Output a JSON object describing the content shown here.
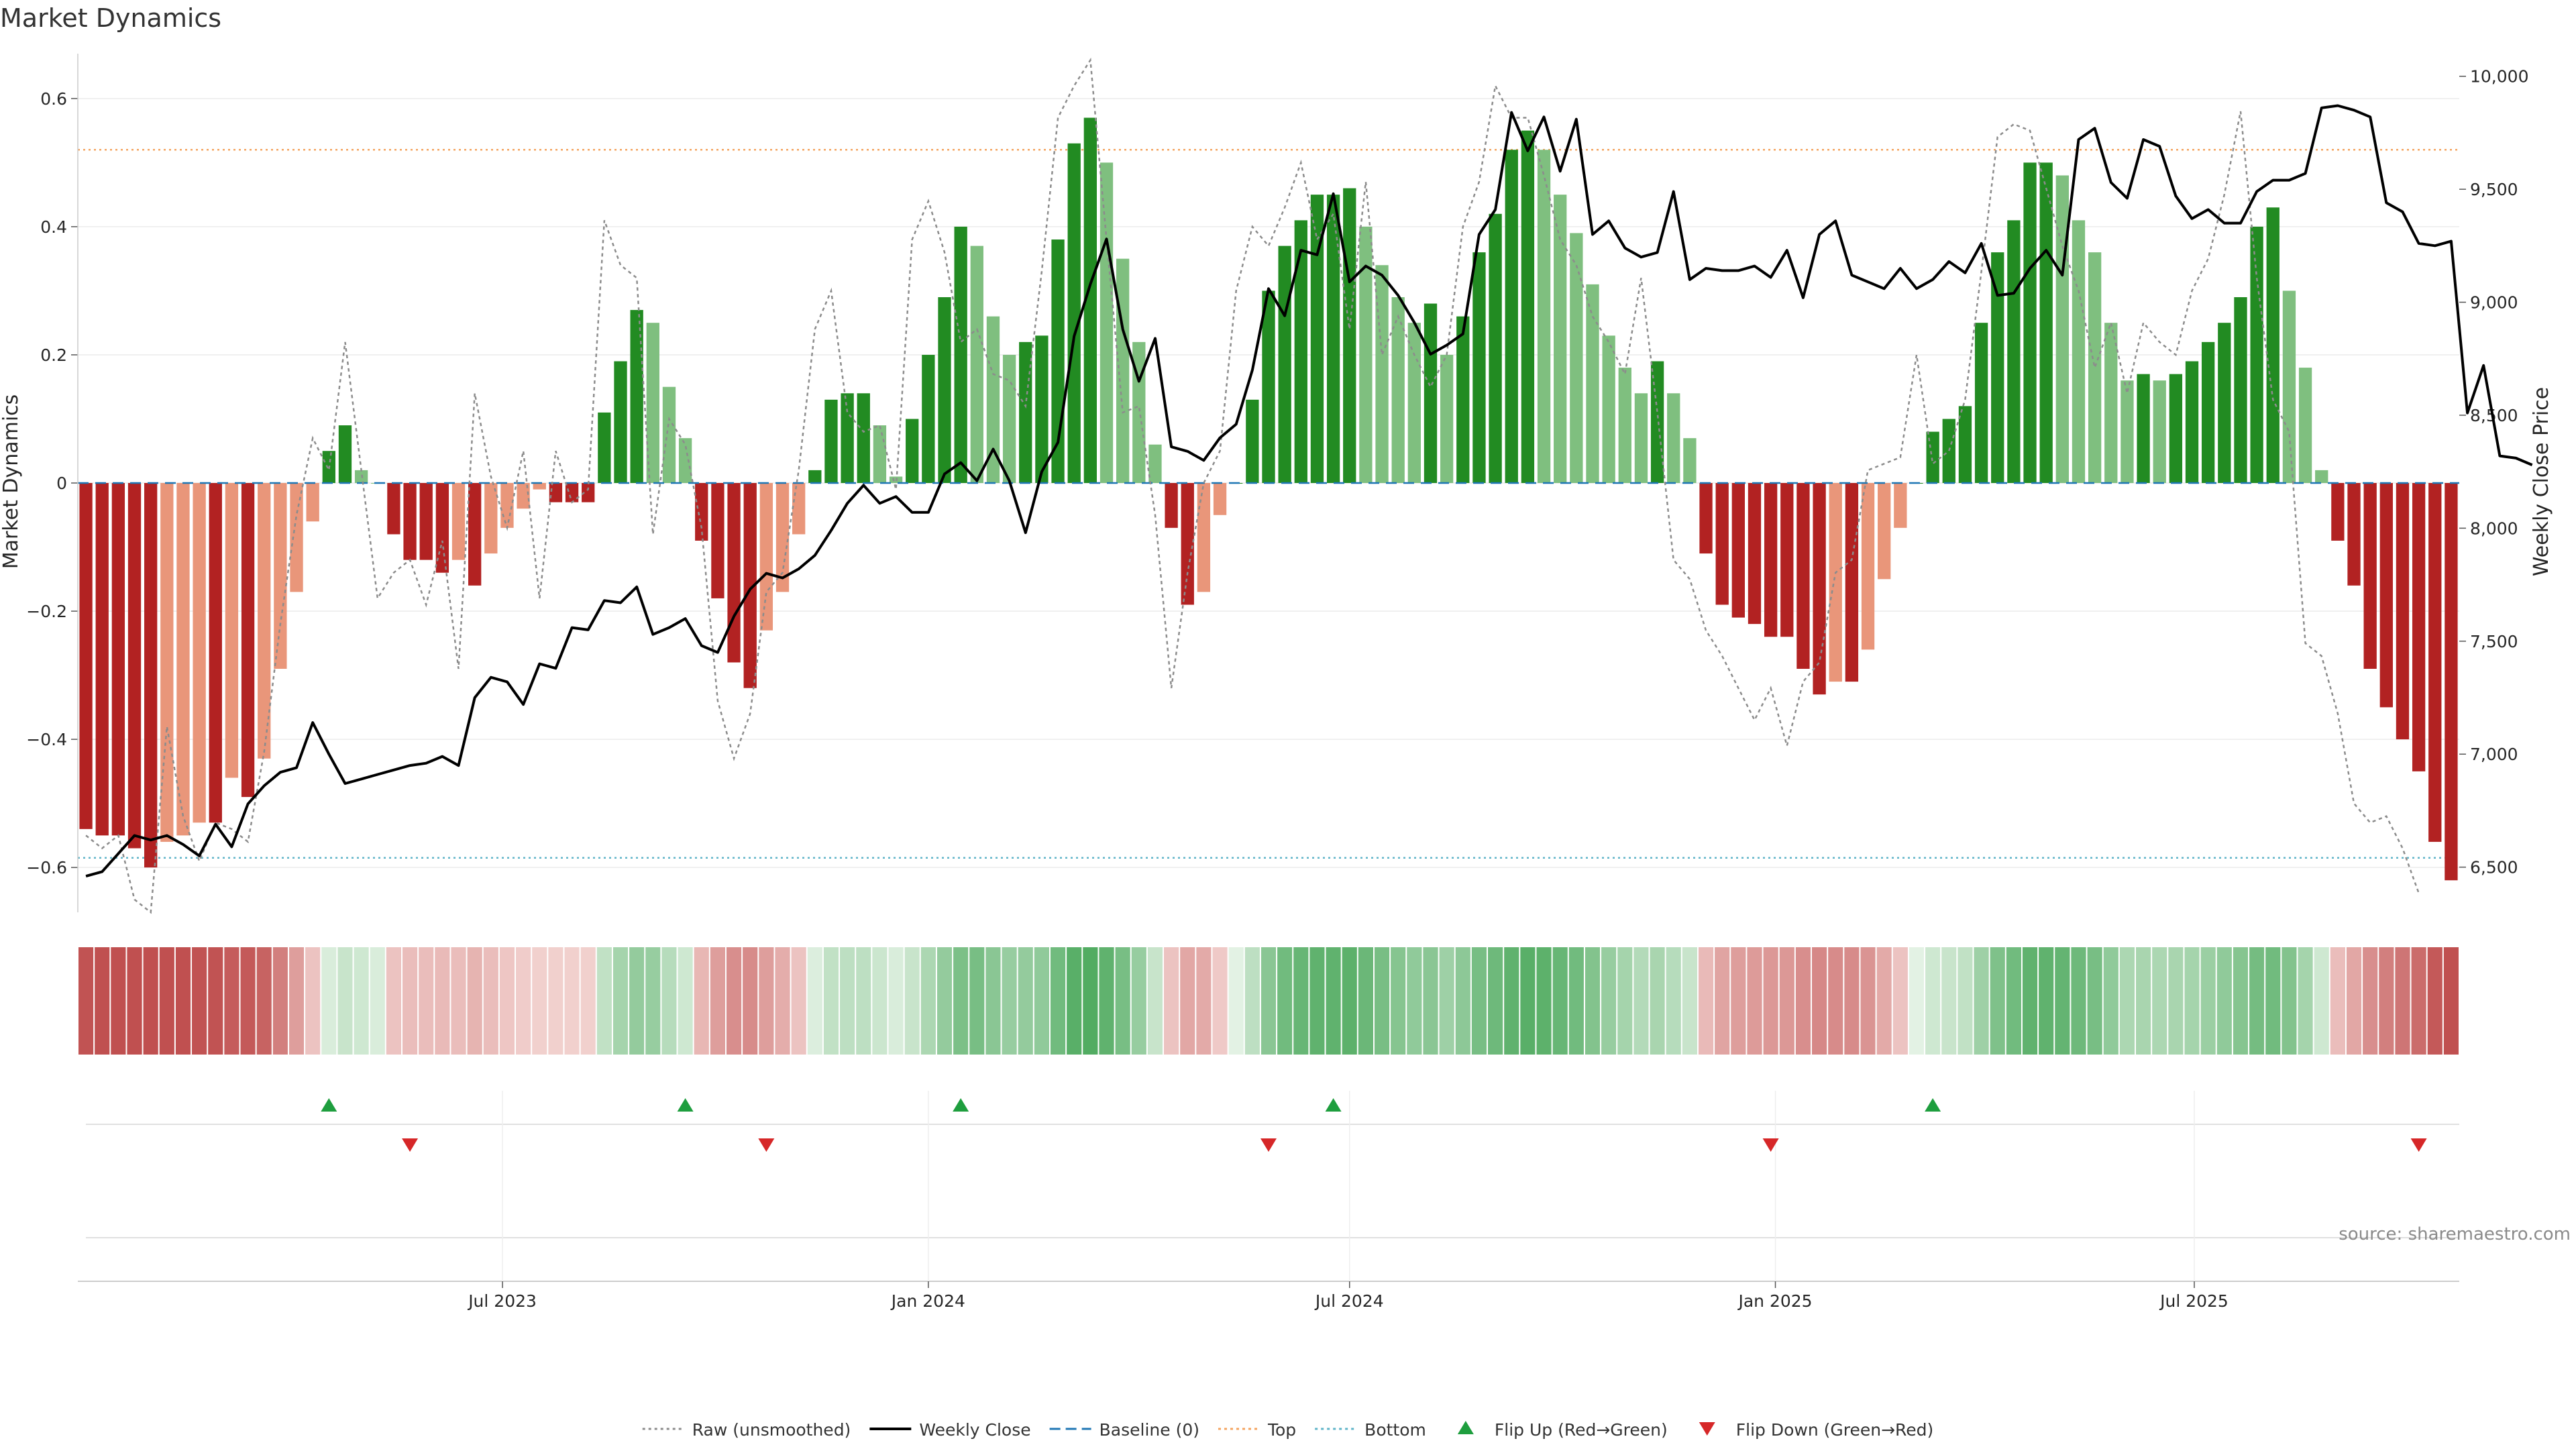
{
  "chart_data": {
    "type": "bar",
    "title": "Market Dynamics",
    "ylabel_left": "Market Dynamics",
    "ylabel_right": "Weekly Close Price",
    "source": "source: sharemaestro.com",
    "start_date": "2023-01-02",
    "ylim_left": [
      -0.67,
      0.67
    ],
    "ylim_right": [
      6300,
      10100
    ],
    "left_ticks": [
      {
        "v": 0.6,
        "label": "0.6"
      },
      {
        "v": 0.4,
        "label": "0.4"
      },
      {
        "v": 0.2,
        "label": "0.2"
      },
      {
        "v": 0,
        "label": "0"
      },
      {
        "v": -0.2,
        "label": "−0.2"
      },
      {
        "v": -0.4,
        "label": "−0.4"
      },
      {
        "v": -0.6,
        "label": "−0.6"
      }
    ],
    "right_ticks": [
      {
        "v": 10000,
        "label": "10,000"
      },
      {
        "v": 9500,
        "label": "9,500"
      },
      {
        "v": 9000,
        "label": "9,000"
      },
      {
        "v": 8500,
        "label": "8,500"
      },
      {
        "v": 8000,
        "label": "8,000"
      },
      {
        "v": 7500,
        "label": "7,500"
      },
      {
        "v": 7000,
        "label": "7,000"
      },
      {
        "v": 6500,
        "label": "6,500"
      }
    ],
    "x_ticks": [
      {
        "date": "2023-07-01",
        "label": "Jul 2023"
      },
      {
        "date": "2024-01-01",
        "label": "Jan 2024"
      },
      {
        "date": "2024-07-01",
        "label": "Jul 2024"
      },
      {
        "date": "2025-01-01",
        "label": "Jan 2025"
      },
      {
        "date": "2025-07-01",
        "label": "Jul 2025"
      }
    ],
    "top_line": 0.52,
    "bottom_line": -0.585,
    "baseline": 0,
    "colors": {
      "strong_up": "#228b22",
      "weak_up": "#7fbf7f",
      "strong_down": "#b22222",
      "weak_down": "#e9967a",
      "raw": "#8c8c8c",
      "close": "#000000",
      "baseline": "#1f77b4",
      "top": "#f4a460",
      "bottom": "#5fb4c8",
      "flip_up": "#1e9e3e",
      "flip_down": "#d62728"
    },
    "dynamics": [
      -0.54,
      -0.55,
      -0.55,
      -0.57,
      -0.6,
      -0.56,
      -0.55,
      -0.53,
      -0.53,
      -0.46,
      -0.49,
      -0.43,
      -0.29,
      -0.17,
      -0.06,
      0.05,
      0.09,
      0.02,
      0,
      -0.08,
      -0.12,
      -0.12,
      -0.14,
      -0.12,
      -0.16,
      -0.11,
      -0.07,
      -0.04,
      -0.01,
      -0.03,
      -0.03,
      -0.03,
      0.11,
      0.19,
      0.27,
      0.25,
      0.15,
      0.07,
      -0.09,
      -0.18,
      -0.28,
      -0.32,
      -0.23,
      -0.17,
      -0.08,
      0.02,
      0.13,
      0.14,
      0.14,
      0.09,
      0.01,
      0.1,
      0.2,
      0.29,
      0.4,
      0.37,
      0.26,
      0.2,
      0.22,
      0.23,
      0.38,
      0.53,
      0.57,
      0.5,
      0.35,
      0.22,
      0.06,
      -0.07,
      -0.19,
      -0.17,
      -0.05,
      0,
      0.13,
      0.3,
      0.37,
      0.41,
      0.45,
      0.45,
      0.46,
      0.4,
      0.34,
      0.29,
      0.25,
      0.28,
      0.2,
      0.26,
      0.36,
      0.42,
      0.52,
      0.55,
      0.52,
      0.45,
      0.39,
      0.31,
      0.23,
      0.18,
      0.14,
      0.19,
      0.14,
      0.07,
      -0.11,
      -0.19,
      -0.21,
      -0.22,
      -0.24,
      -0.24,
      -0.29,
      -0.33,
      -0.31,
      -0.31,
      -0.26,
      -0.15,
      -0.07,
      0,
      0.08,
      0.1,
      0.12,
      0.25,
      0.36,
      0.41,
      0.5,
      0.5,
      0.48,
      0.41,
      0.36,
      0.25,
      0.16,
      0.17,
      0.16,
      0.17,
      0.19,
      0.22,
      0.25,
      0.29,
      0.4,
      0.43,
      0.3,
      0.18,
      0.02,
      -0.09,
      -0.16,
      -0.29,
      -0.35,
      -0.4,
      -0.45,
      -0.56,
      -0.62
    ],
    "raw": [
      -0.55,
      -0.57,
      -0.55,
      -0.65,
      -0.68,
      -0.38,
      -0.52,
      -0.59,
      -0.53,
      -0.54,
      -0.56,
      -0.42,
      -0.22,
      -0.05,
      0.07,
      0.02,
      0.22,
      0.02,
      -0.18,
      -0.14,
      -0.12,
      -0.19,
      -0.09,
      -0.29,
      0.14,
      0.01,
      -0.07,
      0.05,
      -0.18,
      0.05,
      -0.03,
      -0.01,
      0.41,
      0.34,
      0.32,
      -0.08,
      0.1,
      0.06,
      -0.07,
      -0.34,
      -0.43,
      -0.36,
      -0.17,
      -0.14,
      0.02,
      0.24,
      0.3,
      0.11,
      0.08,
      0.09,
      -0.01,
      0.38,
      0.44,
      0.36,
      0.22,
      0.24,
      0.17,
      0.16,
      0.12,
      0.33,
      0.57,
      0.62,
      0.66,
      0.38,
      0.11,
      0.12,
      -0.05,
      -0.32,
      -0.14,
      0,
      0.05,
      0.3,
      0.4,
      0.37,
      0.43,
      0.5,
      0.38,
      0.42,
      0.24,
      0.47,
      0.2,
      0.26,
      0.2,
      0.15,
      0.2,
      0.4,
      0.47,
      0.62,
      0.57,
      0.57,
      0.48,
      0.38,
      0.34,
      0.26,
      0.22,
      0.17,
      0.32,
      0.11,
      -0.12,
      -0.15,
      -0.23,
      -0.27,
      -0.32,
      -0.37,
      -0.32,
      -0.41,
      -0.31,
      -0.28,
      -0.14,
      -0.12,
      0.02,
      0.03,
      0.04,
      0.2,
      0.03,
      0.05,
      0.13,
      0.33,
      0.54,
      0.56,
      0.55,
      0.46,
      0.37,
      0.3,
      0.18,
      0.25,
      0.14,
      0.25,
      0.22,
      0.2,
      0.3,
      0.35,
      0.45,
      0.58,
      0.32,
      0.13,
      0.08,
      -0.25,
      -0.27,
      -0.36,
      -0.5,
      -0.53,
      -0.52,
      -0.57,
      -0.64
    ],
    "close": [
      6460,
      6480,
      6560,
      6640,
      6620,
      6640,
      6600,
      6550,
      6690,
      6590,
      6780,
      6860,
      6920,
      6940,
      7140,
      7000,
      6870,
      6890,
      6910,
      6930,
      6950,
      6960,
      6990,
      6950,
      7250,
      7340,
      7320,
      7220,
      7400,
      7380,
      7560,
      7550,
      7680,
      7670,
      7740,
      7530,
      7560,
      7600,
      7480,
      7450,
      7610,
      7730,
      7800,
      7780,
      7820,
      7880,
      7990,
      8110,
      8190,
      8110,
      8140,
      8070,
      8070,
      8240,
      8290,
      8210,
      8350,
      8210,
      7980,
      8250,
      8380,
      8850,
      9080,
      9280,
      8880,
      8650,
      8840,
      8360,
      8340,
      8300,
      8400,
      8460,
      8700,
      9060,
      8940,
      9230,
      9210,
      9480,
      9090,
      9160,
      9120,
      9030,
      8910,
      8770,
      8810,
      8860,
      9300,
      9410,
      9840,
      9670,
      9820,
      9580,
      9810,
      9300,
      9360,
      9240,
      9200,
      9220,
      9490,
      9100,
      9150,
      9140,
      9140,
      9160,
      9110,
      9230,
      9020,
      9300,
      9360,
      9120,
      9090,
      9060,
      9150,
      9060,
      9100,
      9180,
      9130,
      9260,
      9030,
      9040,
      9150,
      9230,
      9120,
      9720,
      9770,
      9530,
      9460,
      9720,
      9690,
      9470,
      9370,
      9410,
      9350,
      9350,
      9490,
      9540,
      9540,
      9570,
      9860,
      9870,
      9850,
      9820,
      9440,
      9400,
      9260,
      9250,
      9270,
      8510,
      8720,
      8320,
      8310,
      8280
    ],
    "heatmap_values": [
      -0.44,
      -0.45,
      -0.45,
      -0.46,
      -0.47,
      -0.46,
      -0.45,
      -0.44,
      -0.44,
      -0.41,
      -0.42,
      -0.39,
      -0.3,
      -0.2,
      -0.08,
      0.05,
      0.1,
      0.08,
      0.05,
      -0.08,
      -0.1,
      -0.1,
      -0.11,
      -0.1,
      -0.13,
      -0.1,
      -0.07,
      -0.05,
      -0.04,
      -0.04,
      -0.04,
      -0.04,
      0.12,
      0.2,
      0.25,
      0.24,
      0.15,
      0.08,
      -0.12,
      -0.2,
      -0.25,
      -0.26,
      -0.2,
      -0.15,
      -0.08,
      0.04,
      0.12,
      0.13,
      0.13,
      0.09,
      0.05,
      0.1,
      0.18,
      0.25,
      0.32,
      0.33,
      0.28,
      0.24,
      0.25,
      0.26,
      0.35,
      0.42,
      0.44,
      0.4,
      0.33,
      0.24,
      0.1,
      -0.08,
      -0.17,
      -0.16,
      -0.06,
      0.02,
      0.13,
      0.28,
      0.35,
      0.38,
      0.4,
      0.4,
      0.41,
      0.37,
      0.33,
      0.29,
      0.26,
      0.28,
      0.22,
      0.27,
      0.33,
      0.36,
      0.4,
      0.42,
      0.41,
      0.38,
      0.35,
      0.3,
      0.24,
      0.2,
      0.16,
      0.19,
      0.15,
      0.1,
      -0.11,
      -0.18,
      -0.2,
      -0.21,
      -0.22,
      -0.22,
      -0.25,
      -0.27,
      -0.26,
      -0.26,
      -0.23,
      -0.16,
      -0.08,
      0.02,
      0.08,
      0.1,
      0.12,
      0.22,
      0.31,
      0.35,
      0.4,
      0.4,
      0.39,
      0.36,
      0.33,
      0.26,
      0.18,
      0.19,
      0.18,
      0.19,
      0.2,
      0.23,
      0.26,
      0.29,
      0.34,
      0.35,
      0.3,
      0.2,
      0.08,
      -0.1,
      -0.17,
      -0.25,
      -0.3,
      -0.33,
      -0.36,
      -0.42,
      -0.45
    ],
    "flip_up_dates": [
      "2023-04-17",
      "2023-09-18",
      "2024-01-15",
      "2024-06-24",
      "2025-03-10"
    ],
    "flip_down_dates": [
      "2023-05-22",
      "2023-10-23",
      "2024-05-27",
      "2024-12-30",
      "2025-10-06"
    ],
    "legend": [
      {
        "label": "Raw (unsmoothed)",
        "kind": "dotted",
        "color": "#8c8c8c"
      },
      {
        "label": "Weekly Close",
        "kind": "solid",
        "color": "#000000"
      },
      {
        "label": "Baseline (0)",
        "kind": "dashed",
        "color": "#1f77b4"
      },
      {
        "label": "Top",
        "kind": "dotted",
        "color": "#f4a460"
      },
      {
        "label": "Bottom",
        "kind": "dotted",
        "color": "#5fb4c8"
      },
      {
        "label": "Flip Up (Red→Green)",
        "kind": "triangle-up",
        "color": "#1e9e3e"
      },
      {
        "label": "Flip Down (Green→Red)",
        "kind": "triangle-down",
        "color": "#d62728"
      }
    ]
  }
}
